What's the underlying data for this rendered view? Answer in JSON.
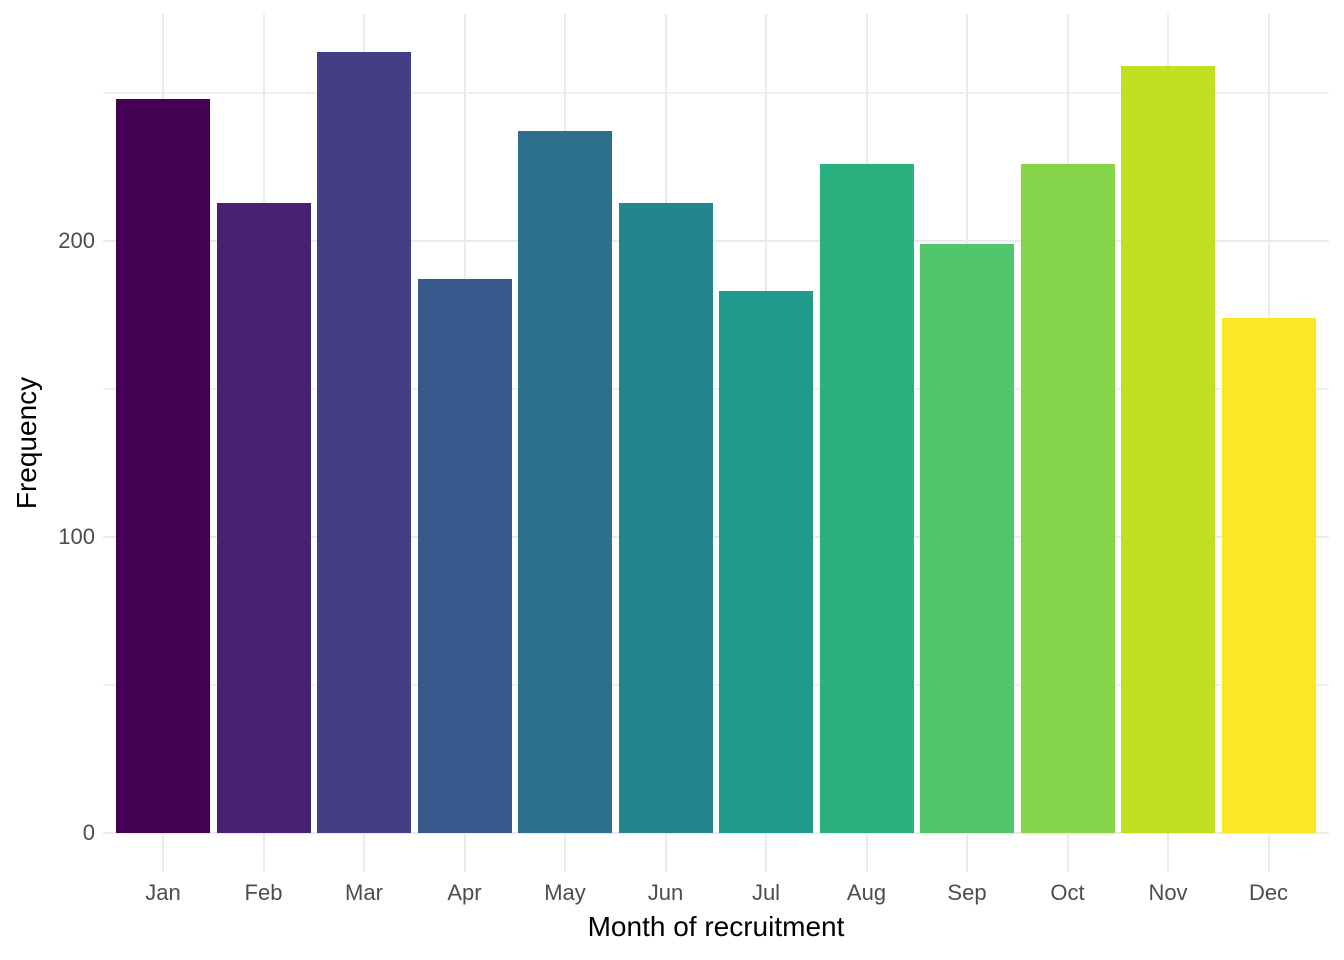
{
  "chart_data": {
    "type": "bar",
    "title": "",
    "xlabel": "Month of recruitment",
    "ylabel": "Frequency",
    "categories": [
      "Jan",
      "Feb",
      "Mar",
      "Apr",
      "May",
      "Jun",
      "Jul",
      "Aug",
      "Sep",
      "Oct",
      "Nov",
      "Dec"
    ],
    "values": [
      248,
      213,
      264,
      187,
      237,
      213,
      183,
      226,
      199,
      226,
      259,
      174
    ],
    "bar_colors": [
      "#440154",
      "#482173",
      "#433E85",
      "#38598C",
      "#2D708E",
      "#25858E",
      "#1E9B8A",
      "#2BB07F",
      "#51C56A",
      "#85D54A",
      "#C2DF23",
      "#FDE725"
    ],
    "palette": "viridis-discrete-12",
    "y_axis": {
      "ticks": [
        0,
        100,
        200
      ],
      "minor_gridlines": [
        50,
        150,
        250
      ],
      "range": [
        -13,
        277
      ]
    },
    "x_axis": {
      "type": "categorical"
    },
    "grid": {
      "horizontal": true,
      "vertical_at_categories": true
    },
    "legend": "none"
  },
  "style": {
    "panel_background": "#FFFFFF",
    "figure_background": "#FFFFFF",
    "grid_major_color": "#EBEBEB",
    "grid_minor_color": "#F0F0F0",
    "axis_text_color": "#4D4D4D",
    "axis_title_color": "#000000"
  }
}
